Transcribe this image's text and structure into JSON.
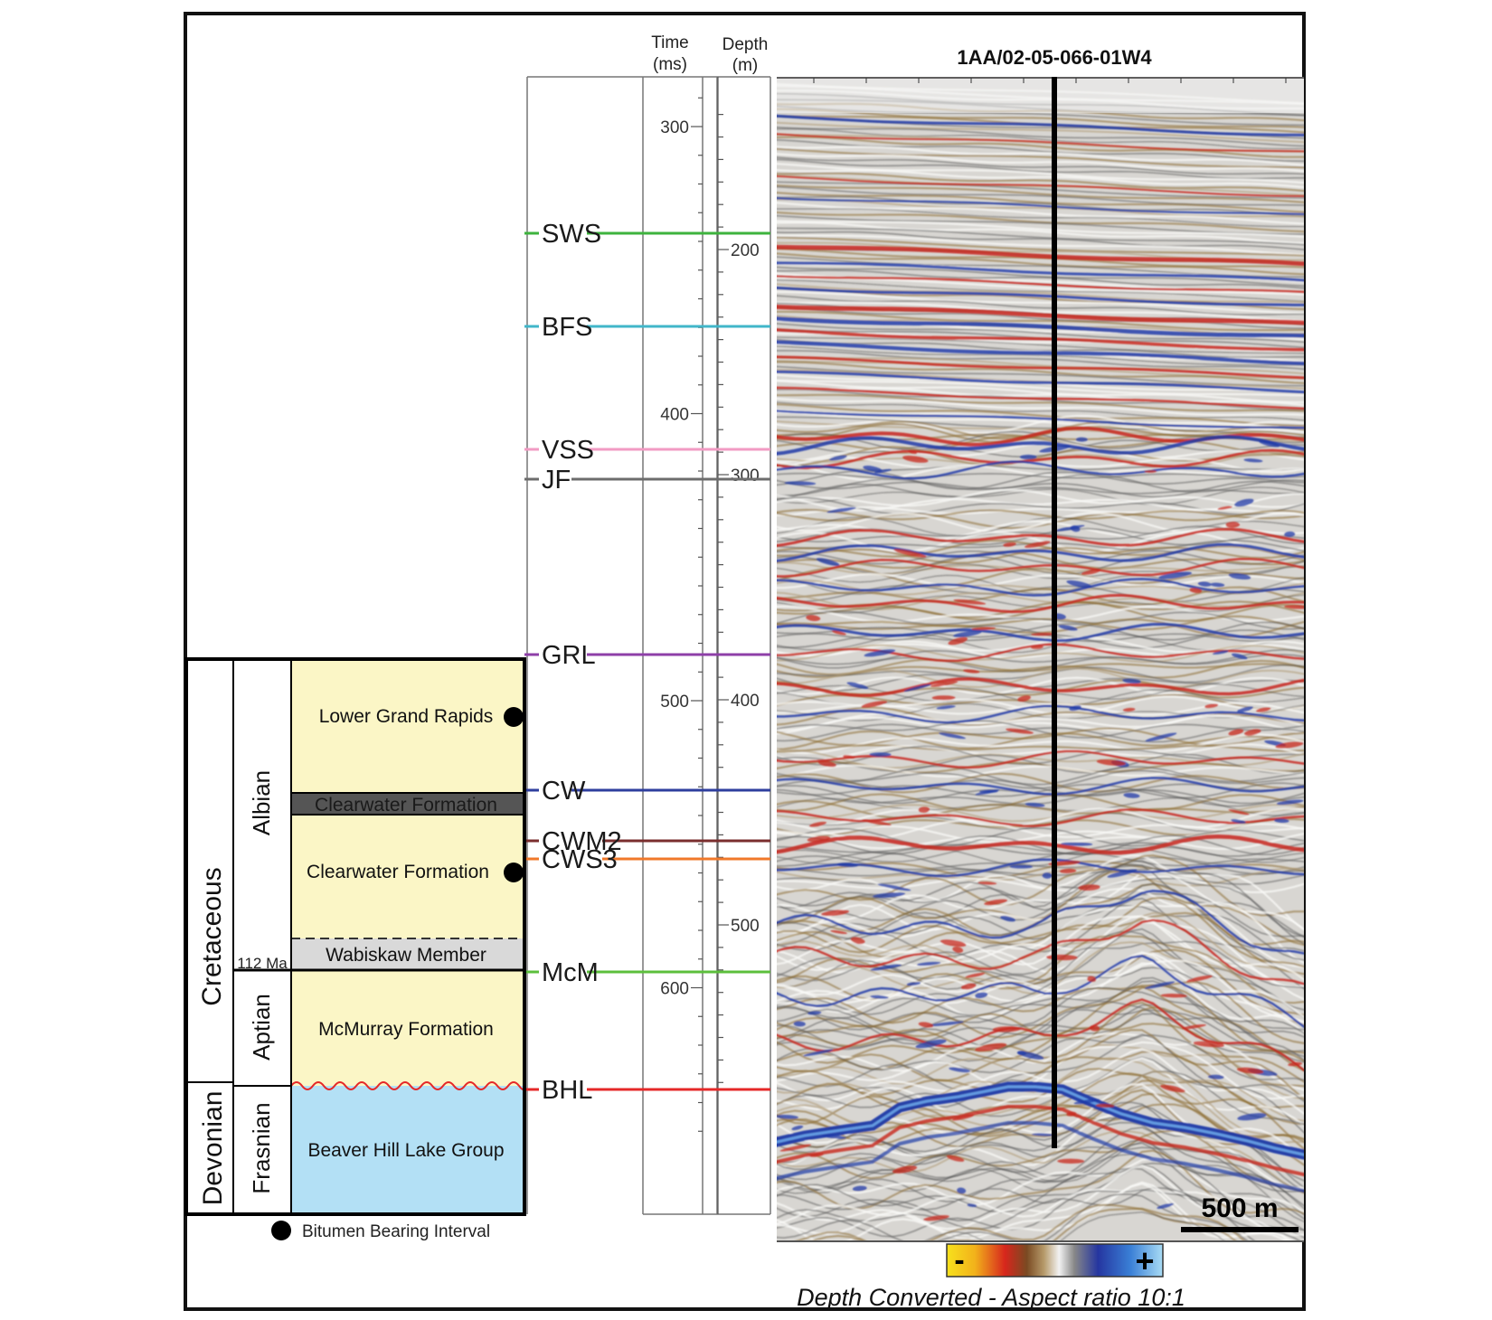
{
  "header": {
    "time_label_1": "Time",
    "time_label_2": "(ms)",
    "depth_label_1": "Depth",
    "depth_label_2": "(m)",
    "well_name": "1AA/02-05-066-01W4"
  },
  "time_ticks": [
    {
      "value": 300,
      "label": "300"
    },
    {
      "value": 400,
      "label": "400"
    },
    {
      "value": 500,
      "label": "500"
    },
    {
      "value": 600,
      "label": "600"
    }
  ],
  "depth_ticks": [
    {
      "value": 200,
      "label": "200"
    },
    {
      "value": 300,
      "label": "300"
    },
    {
      "value": 400,
      "label": "400"
    },
    {
      "value": 500,
      "label": "500"
    }
  ],
  "horizons": [
    {
      "name": "SWS",
      "color": "#3db33d"
    },
    {
      "name": "BFS",
      "color": "#41b6c9"
    },
    {
      "name": "VSS",
      "color": "#f29bc3"
    },
    {
      "name": "JF",
      "color": "#6d6d6d"
    },
    {
      "name": "GRL",
      "color": "#8e3fa8"
    },
    {
      "name": "CW",
      "color": "#2e3e9e"
    },
    {
      "name": "CWM2",
      "color": "#7a2e2e"
    },
    {
      "name": "CWS3",
      "color": "#f0782a"
    },
    {
      "name": "McM",
      "color": "#5cbf3c"
    },
    {
      "name": "BHL",
      "color": "#e52828"
    }
  ],
  "stratigraphy": {
    "periods": [
      "Cretaceous",
      "Devonian"
    ],
    "stages": [
      "Albian",
      "Aptian",
      "Frasnian"
    ],
    "age_marker": "112 Ma",
    "units": [
      {
        "name": "Lower Grand Rapids",
        "bitumen": true
      },
      {
        "name": "Clearwater Formation",
        "bitumen": false
      },
      {
        "name": "Clearwater Formation",
        "bitumen": true
      },
      {
        "name": "Wabiskaw Member",
        "bitumen": false
      },
      {
        "name": "McMurray Formation",
        "bitumen": false
      },
      {
        "name": "Beaver Hill Lake Group",
        "bitumen": false
      }
    ],
    "legend": "Bitumen Bearing Interval"
  },
  "seismic": {
    "scale_bar": "500 m",
    "colorbar_minus": "-",
    "colorbar_plus": "+",
    "caption": "Depth Converted - Aspect ratio 10:1"
  },
  "colors": {
    "unit_yellow": "#fbf6c6",
    "unit_blue": "#b3e0f5",
    "unit_gray": "#d9d9d9",
    "unit_dark": "#555555",
    "trough_red": "#c8271c",
    "peak_blue": "#1f3aa8",
    "brown": "#8a6a2e"
  }
}
